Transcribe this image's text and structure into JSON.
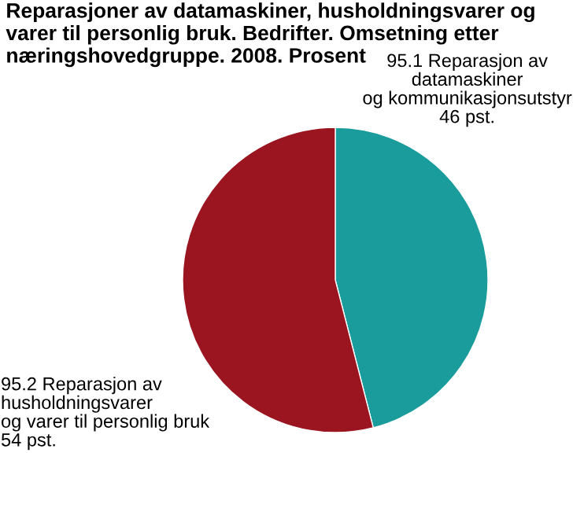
{
  "chart_data": {
    "type": "pie",
    "title": "Reparasjoner av datamaskiner, husholdningsvarer og varer til personlig bruk. Bedrifter. Omsetning etter næringshovedgruppe. 2008. Prosent",
    "categories": [
      "95.1 Reparasjon av\ndatamaskiner\nog kommunikasjonsutstyr",
      "95.2 Reparasjon av\nhusholdningsvarer\nog varer til personlig bruk"
    ],
    "values": [
      46,
      54
    ],
    "colors": [
      "#1a9c9c",
      "#9b1520"
    ],
    "value_labels": [
      "46 pst.",
      "54 pst."
    ]
  }
}
